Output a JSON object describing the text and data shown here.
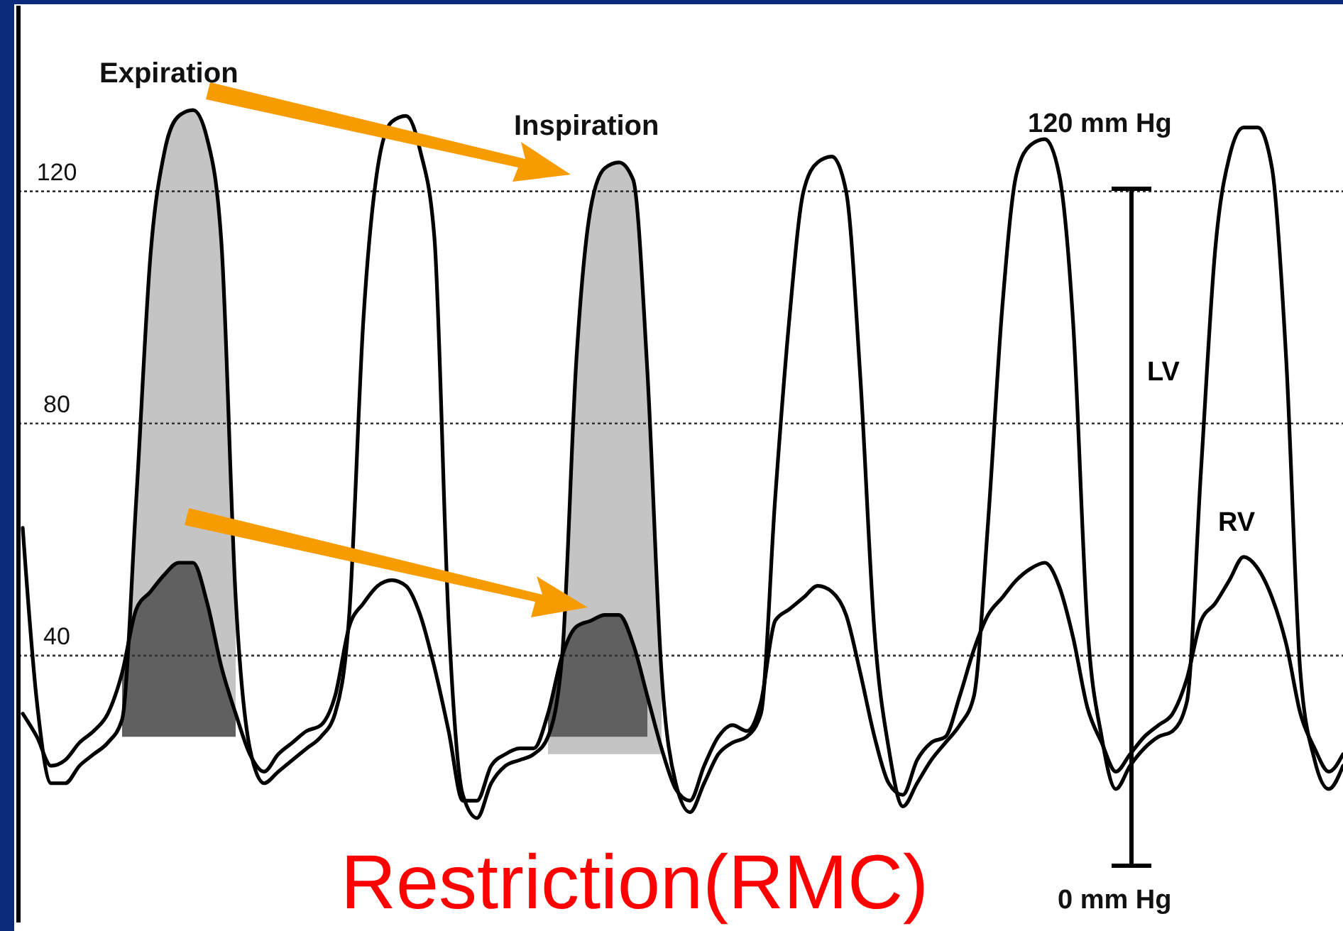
{
  "chart_data": {
    "type": "line",
    "categories": [
      null,
      null,
      null,
      null,
      null,
      null,
      null,
      null,
      null,
      null,
      null,
      null,
      null,
      null,
      null,
      null,
      null,
      null,
      null,
      null,
      null,
      null,
      null,
      null,
      null,
      null,
      null,
      null,
      null,
      null,
      null,
      null,
      null,
      null,
      null,
      null,
      null,
      null,
      null,
      null,
      null,
      null,
      null,
      null,
      null,
      null,
      null,
      null,
      null,
      null,
      null,
      null,
      null,
      null,
      null,
      null,
      null,
      null,
      null,
      null,
      null,
      null,
      null,
      null,
      null,
      null,
      null,
      null,
      null,
      null,
      null,
      null,
      null,
      null,
      null,
      null,
      null,
      null,
      null,
      null,
      null,
      null,
      null,
      null,
      null,
      null,
      null,
      null,
      null,
      null,
      null,
      null,
      null,
      null
    ],
    "series": [
      {
        "name": "LV",
        "color": "#000000",
        "values": [
          62,
          32,
          18,
          18,
          21,
          23,
          25,
          29,
          67,
          109,
          127,
          133,
          134,
          129,
          111,
          50,
          24,
          18,
          20,
          22,
          24,
          26,
          30,
          47,
          98,
          124,
          132,
          133,
          127,
          112,
          46,
          16,
          12,
          18,
          21,
          22,
          23,
          26,
          40,
          91,
          117,
          124,
          125,
          122,
          89,
          37,
          18,
          13,
          18,
          23,
          25,
          26,
          30,
          67,
          98,
          120,
          125,
          126,
          120,
          88,
          44,
          24,
          14,
          18,
          22,
          25,
          28,
          33,
          63,
          100,
          123,
          128,
          129,
          123,
          97,
          45,
          26,
          17,
          21,
          24,
          26,
          27,
          32,
          72,
          110,
          126,
          131,
          131,
          124,
          91,
          37,
          22,
          17,
          21
        ],
        "lower": [
          null,
          null,
          null,
          null,
          null,
          null,
          null,
          26,
          26,
          26,
          26,
          26,
          26,
          26,
          26,
          26,
          null,
          null,
          null,
          null,
          null,
          null,
          null,
          null,
          null,
          null,
          null,
          null,
          null,
          null,
          null,
          null,
          null,
          null,
          null,
          null,
          null,
          23,
          23,
          23,
          23,
          23,
          23,
          23,
          23,
          23,
          null,
          null,
          null,
          null,
          null,
          null,
          null,
          null,
          null,
          null,
          null,
          null,
          null,
          null,
          null,
          null,
          null,
          null,
          null,
          null,
          null,
          null,
          null,
          null,
          null,
          null,
          null,
          null,
          null,
          null,
          null,
          null,
          null,
          null,
          null,
          null,
          null,
          null,
          null,
          null,
          null,
          null,
          null,
          null,
          null,
          null,
          null,
          null
        ],
        "upper": [
          null,
          null,
          null,
          null,
          null,
          null,
          null,
          29,
          67,
          109,
          127,
          133,
          134,
          129,
          111,
          50,
          null,
          null,
          null,
          null,
          null,
          null,
          null,
          null,
          null,
          null,
          null,
          null,
          null,
          null,
          null,
          null,
          null,
          null,
          null,
          null,
          null,
          26,
          40,
          91,
          117,
          124,
          125,
          122,
          89,
          37,
          null,
          null,
          null,
          null,
          null,
          null,
          null,
          null,
          null,
          null,
          null,
          null,
          null,
          null,
          null,
          null,
          null,
          null,
          null,
          null,
          null,
          null,
          null,
          null,
          null,
          null,
          null,
          null,
          null,
          null,
          null,
          null,
          null,
          null,
          null,
          null,
          null,
          null,
          null,
          null,
          null,
          null,
          null,
          null,
          null,
          null,
          null,
          null
        ]
      },
      {
        "name": "RV",
        "color": "#000000",
        "values": [
          30,
          26,
          21,
          22,
          25,
          27,
          30,
          37,
          48,
          51,
          54,
          56,
          56,
          49,
          38,
          30,
          23,
          20,
          23,
          25,
          27,
          28,
          33,
          45,
          49,
          52,
          53,
          52,
          47,
          38,
          27,
          15,
          15,
          21,
          23,
          24,
          24,
          30,
          40,
          45,
          46,
          47,
          47,
          42,
          33,
          24,
          17,
          15,
          21,
          26,
          28,
          27,
          32,
          46,
          48,
          50,
          52,
          51,
          47,
          37,
          26,
          18,
          16,
          22,
          25,
          26,
          33,
          41,
          47,
          50,
          53,
          55,
          56,
          52,
          43,
          31,
          25,
          20,
          23,
          26,
          28,
          30,
          36,
          46,
          49,
          53,
          57,
          55,
          50,
          42,
          30,
          24,
          20,
          23
        ],
        "lower": [
          null,
          null,
          null,
          null,
          null,
          null,
          null,
          26,
          26,
          26,
          26,
          26,
          26,
          26,
          26,
          26,
          null,
          null,
          null,
          null,
          null,
          null,
          null,
          null,
          null,
          null,
          null,
          null,
          null,
          null,
          null,
          null,
          null,
          null,
          null,
          null,
          null,
          26,
          26,
          26,
          26,
          26,
          26,
          26,
          26,
          null,
          null,
          null,
          null,
          null,
          null,
          null,
          null,
          null,
          null,
          null,
          null,
          null,
          null,
          null,
          null,
          null,
          null,
          null,
          null,
          null,
          null,
          null,
          null,
          null,
          null,
          null,
          null,
          null,
          null,
          null,
          null,
          null,
          null,
          null,
          null,
          null,
          null,
          null,
          null,
          null,
          null,
          null,
          null,
          null,
          null,
          null,
          null,
          null
        ],
        "upper": [
          null,
          null,
          null,
          null,
          null,
          null,
          null,
          37,
          48,
          51,
          54,
          56,
          56,
          49,
          38,
          30,
          null,
          null,
          null,
          null,
          null,
          null,
          null,
          null,
          null,
          null,
          null,
          null,
          null,
          null,
          null,
          null,
          null,
          null,
          null,
          null,
          null,
          30,
          40,
          45,
          46,
          47,
          47,
          42,
          33,
          null,
          null,
          null,
          null,
          null,
          null,
          null,
          null,
          null,
          null,
          null,
          null,
          null,
          null,
          null,
          null,
          null,
          null,
          null,
          null,
          null,
          null,
          null,
          null,
          null,
          null,
          null,
          null,
          null,
          null,
          null,
          null,
          null,
          null,
          null,
          null,
          null,
          null,
          null,
          null,
          null,
          null,
          null,
          null,
          null,
          null,
          null,
          null,
          null
        ]
      }
    ],
    "ylim": [
      -6,
      152
    ],
    "yticks": [
      40,
      80,
      120
    ],
    "grid": "y",
    "tick_labels": "y",
    "legend": false,
    "marker": "none",
    "line_style": "solid",
    "annotations": [
      "Expiration",
      "Inspiration",
      "Restriction(RMC)",
      "120 mm Hg",
      "0 mm Hg"
    ]
  }
}
